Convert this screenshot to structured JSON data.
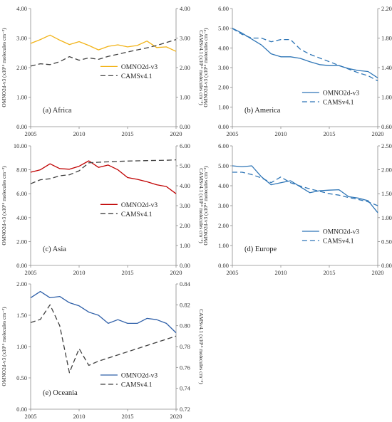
{
  "chart_data": [
    {
      "type": "line",
      "panel_label": "(a) Africa",
      "x": [
        2005,
        2006,
        2007,
        2008,
        2009,
        2010,
        2011,
        2012,
        2013,
        2014,
        2015,
        2016,
        2017,
        2018,
        2019,
        2020
      ],
      "xlim": [
        2005,
        2020
      ],
      "xticks": [
        "2005",
        "2010",
        "2015",
        "2020"
      ],
      "ylabel_left": "OMNO2d-v3 (x10¹⁵ molecules cm⁻²)",
      "ylabel_right": "CAMSv4.1 (x10¹⁵ molecules cm⁻²)",
      "ylim_left": [
        0,
        4
      ],
      "yticks_left": [
        "0.00",
        "1.00",
        "2.00",
        "3.00",
        "4.00"
      ],
      "ylim_right": [
        0,
        4
      ],
      "yticks_right": [
        "0.00",
        "1.00",
        "2.00",
        "3.00",
        "4.00"
      ],
      "legend_position": "center-right",
      "series": [
        {
          "name": "OMNO2d-v3",
          "axis": "left",
          "color": "#F2B318",
          "dash": "solid",
          "values": [
            2.82,
            2.95,
            3.1,
            2.93,
            2.78,
            2.88,
            2.75,
            2.6,
            2.72,
            2.77,
            2.7,
            2.75,
            2.9,
            2.68,
            2.7,
            2.55
          ]
        },
        {
          "name": "CAMSv4.1",
          "axis": "right",
          "color": "#404040",
          "dash": "long",
          "values": [
            2.05,
            2.13,
            2.1,
            2.2,
            2.37,
            2.25,
            2.33,
            2.28,
            2.38,
            2.45,
            2.53,
            2.6,
            2.67,
            2.75,
            2.85,
            2.95
          ]
        }
      ]
    },
    {
      "type": "line",
      "panel_label": "(b) America",
      "x": [
        2005,
        2006,
        2007,
        2008,
        2009,
        2010,
        2011,
        2012,
        2013,
        2014,
        2015,
        2016,
        2017,
        2018,
        2019,
        2020
      ],
      "xlim": [
        2005,
        2020
      ],
      "xticks": [
        "2005",
        "2010",
        "2015",
        "2020"
      ],
      "ylabel_left": "OMNO2d-v3 (x10¹⁵ molecules cm⁻²)",
      "ylabel_right": "CAMSv4.1 (x10¹⁵ molecules cm⁻²)",
      "ylim_left": [
        0,
        6
      ],
      "yticks_left": [
        "0.00",
        "1.00",
        "2.00",
        "3.00",
        "4.00",
        "5.00",
        "6.00"
      ],
      "ylim_right": [
        0.6,
        2.2
      ],
      "yticks_right": [
        "0.60",
        "1.00",
        "1.40",
        "1.80",
        "2.20"
      ],
      "legend_position": "bottom-right",
      "series": [
        {
          "name": "OMNO2d-v3",
          "axis": "left",
          "color": "#2E75B6",
          "dash": "solid",
          "values": [
            5.0,
            4.75,
            4.45,
            4.15,
            3.7,
            3.55,
            3.55,
            3.47,
            3.3,
            3.15,
            3.1,
            3.1,
            2.95,
            2.85,
            2.8,
            2.48
          ]
        },
        {
          "name": "CAMSv4.1",
          "axis": "right",
          "color": "#2E75B6",
          "dash": "long",
          "values": [
            1.93,
            1.85,
            1.8,
            1.8,
            1.75,
            1.78,
            1.78,
            1.65,
            1.58,
            1.53,
            1.48,
            1.43,
            1.38,
            1.33,
            1.29,
            1.22
          ]
        }
      ]
    },
    {
      "type": "line",
      "panel_label": "(c) Asia",
      "x": [
        2005,
        2006,
        2007,
        2008,
        2009,
        2010,
        2011,
        2012,
        2013,
        2014,
        2015,
        2016,
        2017,
        2018,
        2019,
        2020
      ],
      "xlim": [
        2005,
        2020
      ],
      "xticks": [
        "2005",
        "2010",
        "2015",
        "2020"
      ],
      "ylabel_left": "OMNO2d-v3 (x10¹⁵ molecules cm⁻²)",
      "ylabel_right": "CAMSv4.1 (x10¹⁵ molecules cm⁻²)",
      "ylim_left": [
        0,
        10
      ],
      "yticks_left": [
        "0.00",
        "2.00",
        "4.00",
        "6.00",
        "8.00",
        "10.00"
      ],
      "ylim_right": [
        0,
        6
      ],
      "yticks_right": [
        "0.00",
        "1.00",
        "2.00",
        "3.00",
        "4.00",
        "5.00",
        "6.00"
      ],
      "legend_position": "center-right",
      "series": [
        {
          "name": "OMNO2d-v3",
          "axis": "left",
          "color": "#C00000",
          "dash": "solid",
          "values": [
            7.8,
            8.0,
            8.5,
            8.1,
            8.05,
            8.3,
            8.75,
            8.2,
            8.4,
            8.0,
            7.35,
            7.2,
            7.0,
            6.75,
            6.6,
            6.0
          ]
        },
        {
          "name": "CAMSv4.1",
          "axis": "right",
          "color": "#404040",
          "dash": "long",
          "values": [
            4.1,
            4.3,
            4.35,
            4.5,
            4.55,
            4.75,
            5.15,
            5.18,
            5.2,
            5.22,
            5.24,
            5.25,
            5.26,
            5.27,
            5.28,
            5.3
          ]
        }
      ]
    },
    {
      "type": "line",
      "panel_label": "(d) Europe",
      "x": [
        2005,
        2006,
        2007,
        2008,
        2009,
        2010,
        2011,
        2012,
        2013,
        2014,
        2015,
        2016,
        2017,
        2018,
        2019,
        2020
      ],
      "xlim": [
        2005,
        2020
      ],
      "xticks": [
        "2005",
        "2010",
        "2015",
        "2020"
      ],
      "ylabel_left": "OMNO2d-v3 (x10¹⁵ molecules cm⁻²)",
      "ylabel_right": "CAMSv4.1 (x10¹⁵ molecules cm⁻²)",
      "ylim_left": [
        0,
        6
      ],
      "yticks_left": [
        "0.00",
        "1.00",
        "2.00",
        "3.00",
        "4.00",
        "5.00",
        "6.00"
      ],
      "ylim_right": [
        0,
        2.5
      ],
      "yticks_right": [
        "0.00",
        "0.50",
        "1.00",
        "1.50",
        "2.00",
        "2.50"
      ],
      "legend_position": "bottom-right",
      "series": [
        {
          "name": "OMNO2d-v3",
          "axis": "left",
          "color": "#2E75B6",
          "dash": "solid",
          "values": [
            5.0,
            4.95,
            5.0,
            4.45,
            4.05,
            4.15,
            4.25,
            3.95,
            3.65,
            3.75,
            3.78,
            3.8,
            3.45,
            3.38,
            3.25,
            2.65
          ]
        },
        {
          "name": "CAMSv4.1",
          "axis": "right",
          "color": "#2E75B6",
          "dash": "long",
          "values": [
            1.95,
            1.95,
            1.9,
            1.83,
            1.73,
            1.85,
            1.73,
            1.66,
            1.6,
            1.55,
            1.5,
            1.47,
            1.42,
            1.38,
            1.33,
            1.25
          ]
        }
      ]
    },
    {
      "type": "line",
      "panel_label": "(e) Oceania",
      "x": [
        2005,
        2006,
        2007,
        2008,
        2009,
        2010,
        2011,
        2012,
        2013,
        2014,
        2015,
        2016,
        2017,
        2018,
        2019,
        2020
      ],
      "xlim": [
        2005,
        2020
      ],
      "xticks": [
        "2005",
        "2010",
        "2015",
        "2020"
      ],
      "ylabel_left": "OMNO2d-v3 (x10¹⁵ molecules cm⁻²)",
      "ylabel_right": "CAMSv4.1 (x10¹⁵ molecules cm⁻²)",
      "ylim_left": [
        0,
        2
      ],
      "yticks_left": [
        "0.00",
        "0.50",
        "1.00",
        "1.50",
        "2.00"
      ],
      "ylim_right": [
        0.72,
        0.84
      ],
      "yticks_right": [
        "0.72",
        "0.74",
        "0.76",
        "0.78",
        "0.80",
        "0.82",
        "0.84"
      ],
      "legend_position": "bottom-right",
      "series": [
        {
          "name": "OMNO2d-v3",
          "axis": "left",
          "color": "#2E5FA8",
          "dash": "solid",
          "values": [
            1.78,
            1.88,
            1.78,
            1.8,
            1.7,
            1.65,
            1.55,
            1.5,
            1.37,
            1.43,
            1.37,
            1.37,
            1.45,
            1.43,
            1.37,
            1.22
          ]
        },
        {
          "name": "CAMSv4.1",
          "axis": "right",
          "color": "#404040",
          "dash": "long",
          "values": [
            0.803,
            0.806,
            0.82,
            0.8,
            0.755,
            0.778,
            0.762,
            0.766,
            0.769,
            0.772,
            0.775,
            0.778,
            0.781,
            0.784,
            0.787,
            0.79
          ]
        }
      ]
    }
  ]
}
